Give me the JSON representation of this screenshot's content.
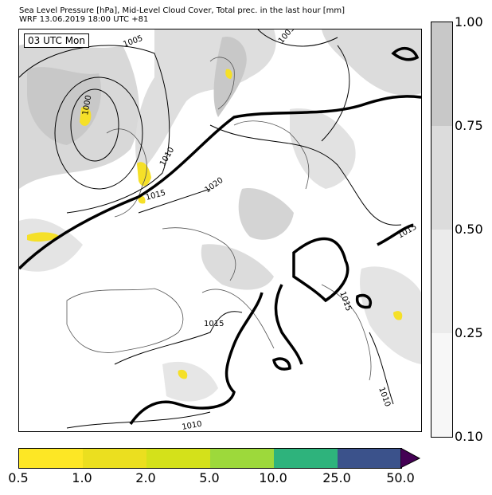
{
  "header": {
    "title_line1": "Sea Level Pressure [hPa], Mid-Level Cloud Cover, Total prec. in the last hour [mm]",
    "title_line2": "WRF 13.06.2019 18:00 UTC +81"
  },
  "map": {
    "time_label": "03 UTC Mon",
    "isobar_labels": [
      "1005",
      "1000",
      "1005",
      "1010",
      "1015",
      "1020",
      "1015",
      "1015",
      "1010",
      "1010",
      "1015"
    ],
    "colors": {
      "cloud_dark": "#c8c8c8",
      "cloud_mid": "#dcdcdc",
      "cloud_light": "#ececec",
      "precip": "#f5e028",
      "isobar": "#000000",
      "coast": "#555555"
    }
  },
  "cloud_colorbar": {
    "ticks": [
      "1.00",
      "0.75",
      "0.50",
      "0.25",
      "0.10"
    ],
    "colors": [
      "#c8c8c8",
      "#dcdcdc",
      "#ebebeb",
      "#f7f7f7"
    ]
  },
  "precip_colorbar": {
    "ticks": [
      "0.5",
      "1.0",
      "2.0",
      "5.0",
      "10.0",
      "25.0",
      "50.0"
    ],
    "colors": [
      "#fde725",
      "#ebdf1f",
      "#d4e11a",
      "#9dd93b",
      "#2eb37c",
      "#3b528b",
      "#440154"
    ]
  }
}
